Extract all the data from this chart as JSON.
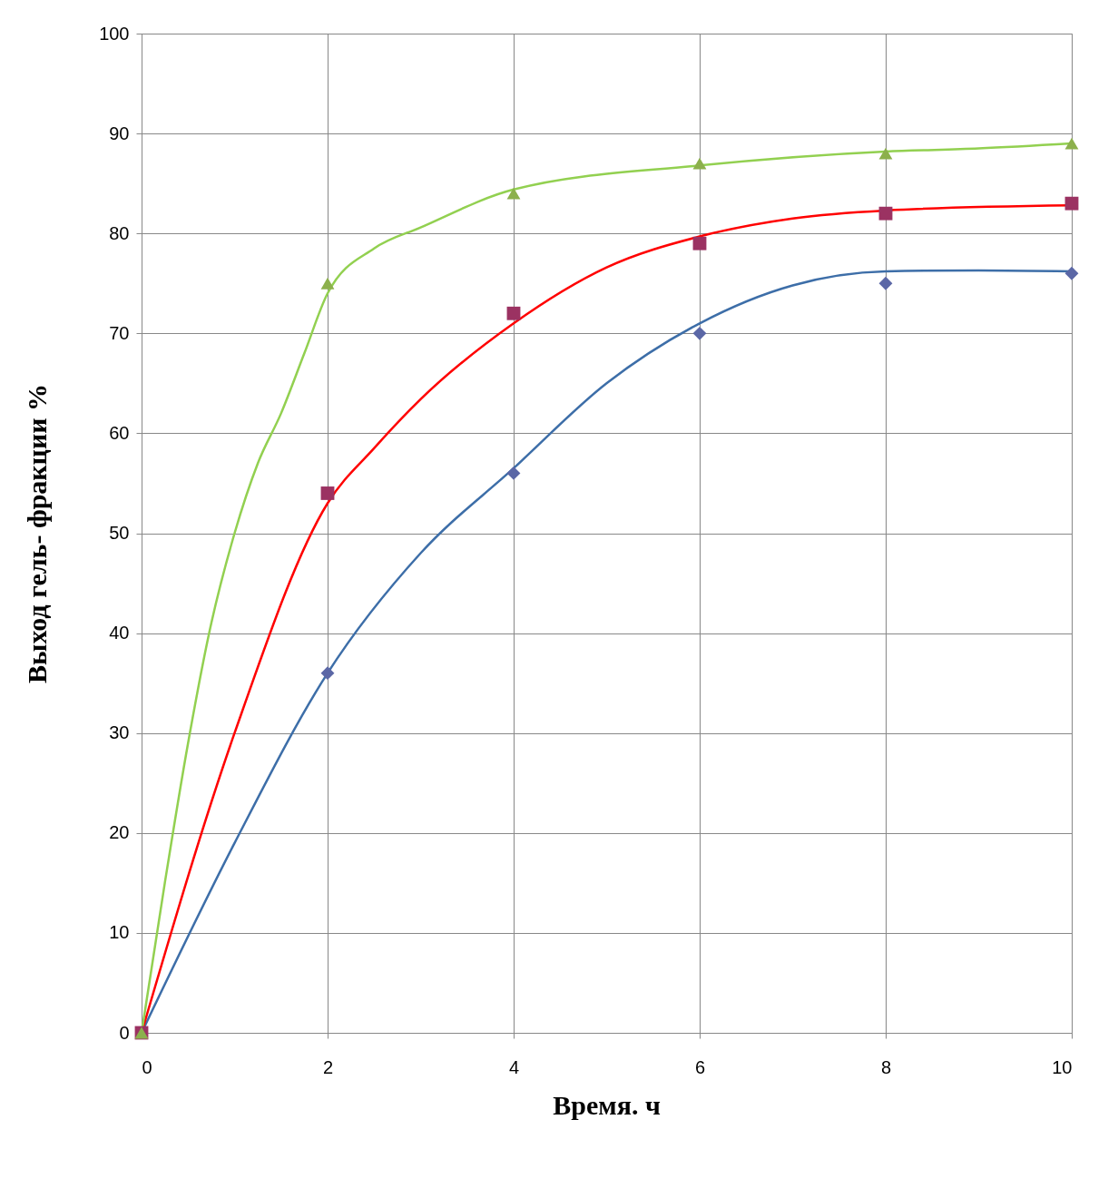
{
  "chart_data": {
    "type": "scatter",
    "xlabel": "Время. ч",
    "ylabel": "Выход  гель- фракции  %",
    "x": [
      0,
      2,
      4,
      6,
      8,
      10
    ],
    "xlim": [
      0,
      10
    ],
    "xticks": [
      0,
      2,
      4,
      6,
      8,
      10
    ],
    "ylim": [
      0,
      100
    ],
    "yticks": [
      0,
      10,
      20,
      30,
      40,
      50,
      60,
      70,
      80,
      90,
      100
    ],
    "grid": true,
    "series": [
      {
        "type": "line",
        "color": "#3d6ea8",
        "x": [
          0,
          1,
          2,
          3,
          4,
          5,
          6,
          7,
          8,
          9,
          10
        ],
        "values": [
          0,
          19,
          36,
          48,
          56.5,
          65,
          71,
          74.8,
          76.2,
          76.3,
          76.2
        ]
      },
      {
        "type": "line",
        "color": "#ff0000",
        "x": [
          0,
          1,
          2,
          2.5,
          3,
          4,
          5,
          6,
          7,
          8,
          10
        ],
        "values": [
          0,
          30,
          53,
          58.5,
          63.4,
          71,
          76.6,
          79.7,
          81.5,
          82.3,
          82.8
        ]
      },
      {
        "type": "line",
        "color": "#92d050",
        "x": [
          0,
          0.25,
          0.5,
          0.75,
          1,
          1.25,
          1.5,
          1.75,
          2,
          2.5,
          3,
          4,
          6,
          8,
          9,
          10
        ],
        "values": [
          0,
          15,
          29,
          41,
          50,
          57,
          62,
          68,
          74,
          78.5,
          80.6,
          84.4,
          86.8,
          88.2,
          88.5,
          89
        ]
      },
      {
        "marker": "diamond",
        "color": "#5b67a6",
        "values": [
          null,
          36,
          56,
          70,
          75,
          76
        ]
      },
      {
        "marker": "square",
        "color": "#9b3262",
        "values": [
          0,
          54,
          72,
          79,
          82,
          83
        ]
      },
      {
        "marker": "triangle",
        "color": "#8cb04c",
        "values": [
          0,
          75,
          84,
          87,
          88,
          89
        ]
      }
    ]
  }
}
